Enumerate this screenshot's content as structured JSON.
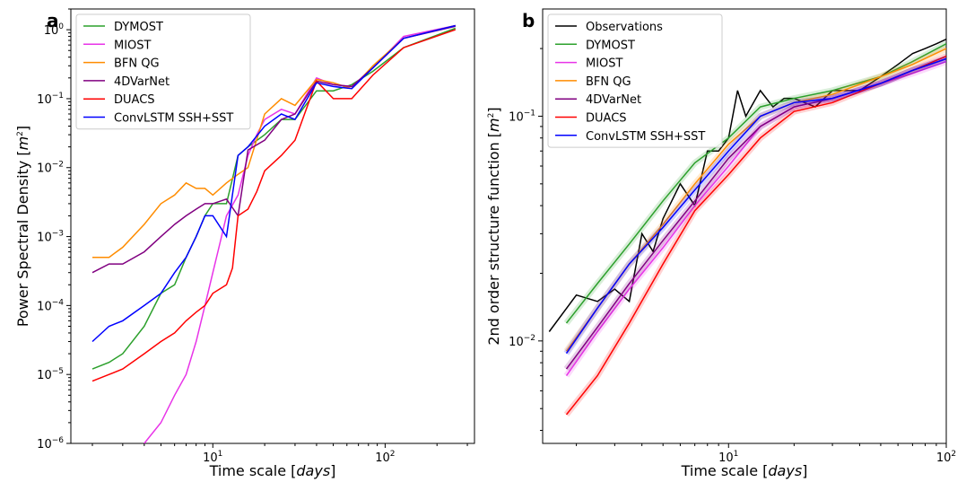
{
  "chart_data": [
    {
      "type": "line",
      "panel_label": "a",
      "xlabel": "Time scale [days]",
      "ylabel": "Power Spectral Density [m2]",
      "xscale": "log",
      "yscale": "log",
      "xlim": [
        1.5,
        330
      ],
      "ylim": [
        1e-06,
        2
      ],
      "xticks": [
        {
          "mant": "10",
          "exp": "1",
          "value": 10
        },
        {
          "mant": "10",
          "exp": "2",
          "value": 100
        }
      ],
      "yticks": [
        {
          "mant": "10",
          "exp": "−6",
          "value": 1e-06
        },
        {
          "mant": "10",
          "exp": "−5",
          "value": 1e-05
        },
        {
          "mant": "10",
          "exp": "−4",
          "value": 0.0001
        },
        {
          "mant": "10",
          "exp": "−3",
          "value": 0.001
        },
        {
          "mant": "10",
          "exp": "−2",
          "value": 0.01
        },
        {
          "mant": "10",
          "exp": "−1",
          "value": 0.1
        },
        {
          "mant": "10",
          "exp": "0",
          "value": 1
        }
      ],
      "legend_position": "top-left",
      "series": [
        {
          "name": "DYMOST",
          "color": "#2ca02c",
          "x": [
            2,
            2.5,
            3,
            4,
            5,
            6,
            7,
            8,
            9,
            10,
            12,
            14,
            16,
            20,
            25,
            30,
            40,
            50,
            64,
            85,
            128,
            256
          ],
          "y": [
            1.2e-05,
            1.5e-05,
            2e-05,
            5e-05,
            0.00015,
            0.0002,
            0.0005,
            0.001,
            0.002,
            0.003,
            0.003,
            0.015,
            0.02,
            0.03,
            0.05,
            0.05,
            0.13,
            0.13,
            0.16,
            0.25,
            0.55,
            1.05
          ]
        },
        {
          "name": "MIOST",
          "color": "#e833e8",
          "x": [
            4,
            5,
            6,
            7,
            8,
            9,
            10,
            11,
            12,
            14,
            16,
            18,
            20,
            25,
            30,
            40,
            50,
            64,
            85,
            128,
            256
          ],
          "y": [
            1e-06,
            2e-06,
            5e-06,
            1e-05,
            3e-05,
            0.0001,
            0.0003,
            0.0008,
            0.002,
            0.004,
            0.015,
            0.03,
            0.05,
            0.07,
            0.06,
            0.2,
            0.16,
            0.15,
            0.28,
            0.8,
            1.15
          ]
        },
        {
          "name": "BFN QG",
          "color": "#ff8c00",
          "x": [
            2,
            2.5,
            3,
            4,
            5,
            6,
            7,
            8,
            9,
            10,
            12,
            14,
            16,
            20,
            25,
            30,
            40,
            50,
            64,
            85,
            128,
            256
          ],
          "y": [
            0.0005,
            0.0005,
            0.0007,
            0.0015,
            0.003,
            0.004,
            0.006,
            0.005,
            0.005,
            0.004,
            0.006,
            0.008,
            0.01,
            0.06,
            0.1,
            0.08,
            0.19,
            0.17,
            0.14,
            0.3,
            0.75,
            1.15
          ]
        },
        {
          "name": "4DVarNet",
          "color": "#800080",
          "x": [
            2,
            2.5,
            3,
            4,
            5,
            6,
            7,
            8,
            9,
            10,
            12,
            14,
            16,
            20,
            25,
            30,
            40,
            50,
            64,
            85,
            128,
            256
          ],
          "y": [
            0.0003,
            0.0004,
            0.0004,
            0.0006,
            0.001,
            0.0015,
            0.002,
            0.0025,
            0.003,
            0.003,
            0.0035,
            0.002,
            0.018,
            0.025,
            0.05,
            0.06,
            0.18,
            0.16,
            0.15,
            0.28,
            0.75,
            1.12
          ]
        },
        {
          "name": "DUACS",
          "color": "#ff0000",
          "x": [
            2,
            2.5,
            3,
            4,
            5,
            6,
            7,
            8,
            9,
            10,
            12,
            13,
            14,
            16,
            18,
            20,
            25,
            30,
            40,
            50,
            64,
            85,
            128,
            256
          ],
          "y": [
            8e-06,
            1e-05,
            1.2e-05,
            2e-05,
            3e-05,
            4e-05,
            6e-05,
            8e-05,
            0.0001,
            0.00015,
            0.0002,
            0.00035,
            0.002,
            0.0025,
            0.0045,
            0.009,
            0.015,
            0.025,
            0.18,
            0.1,
            0.1,
            0.22,
            0.55,
            1.0
          ]
        },
        {
          "name": "ConvLSTM SSH+SST",
          "color": "#0000ff",
          "x": [
            2,
            2.5,
            3,
            4,
            5,
            6,
            7,
            8,
            9,
            10,
            12,
            14,
            16,
            20,
            25,
            30,
            40,
            50,
            64,
            85,
            128,
            256
          ],
          "y": [
            3e-05,
            5e-05,
            6e-05,
            0.0001,
            0.00015,
            0.0003,
            0.0005,
            0.001,
            0.002,
            0.002,
            0.001,
            0.015,
            0.02,
            0.04,
            0.06,
            0.05,
            0.17,
            0.15,
            0.14,
            0.28,
            0.75,
            1.15
          ]
        }
      ]
    },
    {
      "type": "line",
      "panel_label": "b",
      "xlabel": "Time scale [days]",
      "ylabel": "2nd order structure function [m2]",
      "xscale": "log",
      "yscale": "log",
      "xlim": [
        1.4,
        100
      ],
      "ylim": [
        0.0035,
        0.3
      ],
      "xticks": [
        {
          "mant": "10",
          "exp": "1",
          "value": 10
        },
        {
          "mant": "10",
          "exp": "2",
          "value": 100
        }
      ],
      "yticks": [
        {
          "mant": "10",
          "exp": "−2",
          "value": 0.01
        },
        {
          "mant": "10",
          "exp": "−1",
          "value": 0.1
        }
      ],
      "legend_position": "top-left",
      "series": [
        {
          "name": "Observations",
          "color": "#000000",
          "x": [
            1.5,
            2,
            2.5,
            3,
            3.5,
            4,
            4.5,
            5,
            6,
            7,
            8,
            9,
            10,
            11,
            12,
            14,
            16,
            18,
            20,
            25,
            30,
            40,
            50,
            60,
            70,
            80,
            90,
            100
          ],
          "y": [
            0.011,
            0.016,
            0.015,
            0.017,
            0.015,
            0.03,
            0.025,
            0.035,
            0.05,
            0.04,
            0.07,
            0.07,
            0.08,
            0.13,
            0.1,
            0.13,
            0.11,
            0.12,
            0.12,
            0.11,
            0.13,
            0.13,
            0.15,
            0.17,
            0.19,
            0.2,
            0.21,
            0.22
          ]
        },
        {
          "name": "DYMOST",
          "color": "#2ca02c",
          "x": [
            1.8,
            2.5,
            3.5,
            5,
            7,
            10,
            14,
            20,
            30,
            50,
            70,
            100
          ],
          "y": [
            0.012,
            0.018,
            0.027,
            0.042,
            0.062,
            0.08,
            0.11,
            0.12,
            0.13,
            0.15,
            0.175,
            0.21
          ]
        },
        {
          "name": "MIOST",
          "color": "#e833e8",
          "x": [
            1.8,
            2.5,
            3.5,
            5,
            7,
            10,
            14,
            20,
            30,
            50,
            70,
            100
          ],
          "y": [
            0.007,
            0.011,
            0.017,
            0.026,
            0.04,
            0.06,
            0.09,
            0.11,
            0.12,
            0.14,
            0.155,
            0.175
          ]
        },
        {
          "name": "BFN QG",
          "color": "#ff8c00",
          "x": [
            1.8,
            2.5,
            3.5,
            5,
            7,
            10,
            14,
            20,
            30,
            50,
            70,
            100
          ],
          "y": [
            0.009,
            0.014,
            0.022,
            0.033,
            0.05,
            0.075,
            0.1,
            0.115,
            0.125,
            0.15,
            0.17,
            0.2
          ]
        },
        {
          "name": "4DVarNet",
          "color": "#800080",
          "x": [
            1.8,
            2.5,
            3.5,
            5,
            7,
            10,
            14,
            20,
            30,
            50,
            70,
            100
          ],
          "y": [
            0.0075,
            0.0115,
            0.018,
            0.028,
            0.042,
            0.065,
            0.09,
            0.11,
            0.12,
            0.14,
            0.16,
            0.18
          ]
        },
        {
          "name": "DUACS",
          "color": "#ff0000",
          "x": [
            1.8,
            2.5,
            3.5,
            5,
            7,
            10,
            14,
            20,
            30,
            50,
            70,
            100
          ],
          "y": [
            0.0047,
            0.007,
            0.012,
            0.022,
            0.038,
            0.055,
            0.08,
            0.105,
            0.115,
            0.14,
            0.16,
            0.185
          ]
        },
        {
          "name": "ConvLSTM SSH+SST",
          "color": "#0000ff",
          "x": [
            1.8,
            2.5,
            3.5,
            5,
            7,
            10,
            14,
            20,
            30,
            50,
            70,
            100
          ],
          "y": [
            0.0088,
            0.014,
            0.022,
            0.032,
            0.047,
            0.07,
            0.1,
            0.115,
            0.12,
            0.14,
            0.16,
            0.18
          ]
        }
      ]
    }
  ]
}
